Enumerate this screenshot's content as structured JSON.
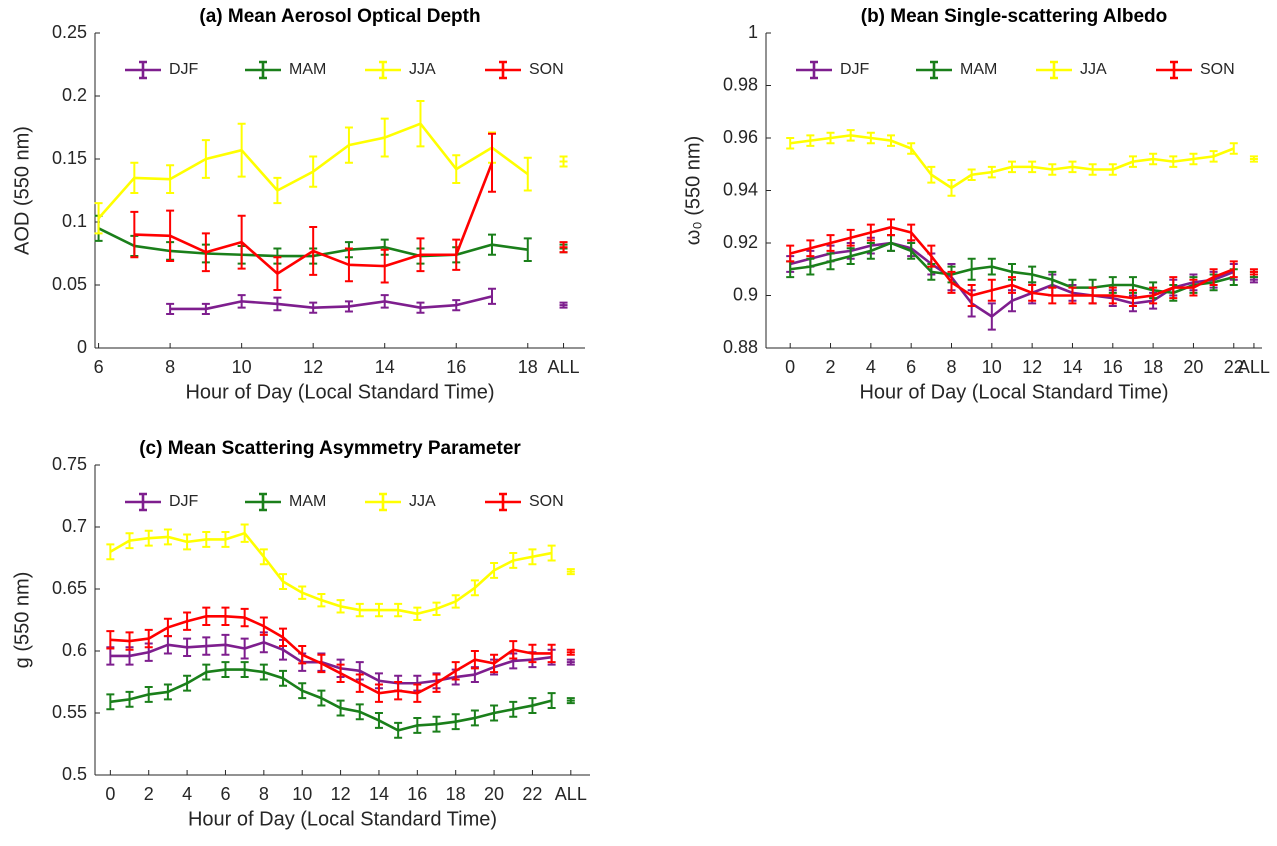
{
  "chart_data": [
    {
      "type": "line",
      "title": "(a) Mean Aerosol Optical Depth",
      "xlabel": "Hour of Day (Local Standard Time)",
      "ylabel": "AOD (550 nm)",
      "x": [
        6,
        7,
        8,
        9,
        10,
        11,
        12,
        13,
        14,
        15,
        16,
        17,
        18
      ],
      "xlim": [
        5.9,
        19.6
      ],
      "xticks": [
        6,
        8,
        10,
        12,
        14,
        16,
        18,
        {
          "value": 19,
          "label": "ALL"
        }
      ],
      "ylim": [
        0,
        0.25
      ],
      "yticks": [
        0,
        0.05,
        0.1,
        0.15,
        0.2,
        0.25
      ],
      "series": [
        {
          "name": "DJF",
          "color": "#7e1e8e",
          "values": [
            null,
            null,
            0.031,
            0.031,
            0.037,
            0.035,
            0.032,
            0.033,
            0.037,
            0.032,
            0.034,
            0.041,
            null
          ],
          "errors": [
            null,
            null,
            0.004,
            0.004,
            0.005,
            0.005,
            0.004,
            0.004,
            0.005,
            0.004,
            0.004,
            0.006,
            null
          ],
          "overall": 0.034,
          "overall_error": 0.002
        },
        {
          "name": "MAM",
          "color": "#1a7f1a",
          "values": [
            0.095,
            0.081,
            0.077,
            0.075,
            0.074,
            0.073,
            0.073,
            0.078,
            0.08,
            0.073,
            0.074,
            0.082,
            0.078
          ],
          "errors": [
            0.01,
            0.008,
            0.007,
            0.007,
            0.007,
            0.006,
            0.006,
            0.006,
            0.006,
            0.006,
            0.006,
            0.008,
            0.009
          ],
          "overall": 0.079,
          "overall_error": 0.003
        },
        {
          "name": "JJA",
          "color": "#ffff00",
          "values": [
            0.103,
            0.135,
            0.134,
            0.15,
            0.157,
            0.125,
            0.14,
            0.161,
            0.167,
            0.178,
            0.142,
            0.159,
            0.138
          ],
          "errors": [
            0.012,
            0.012,
            0.011,
            0.015,
            0.021,
            0.01,
            0.012,
            0.014,
            0.015,
            0.018,
            0.011,
            0.012,
            0.013
          ],
          "overall": 0.148,
          "overall_error": 0.004
        },
        {
          "name": "SON",
          "color": "#ff0000",
          "values": [
            null,
            0.09,
            0.089,
            0.076,
            0.084,
            0.059,
            0.077,
            0.066,
            0.065,
            0.074,
            0.074,
            0.147,
            null
          ],
          "errors": [
            null,
            0.018,
            0.02,
            0.015,
            0.021,
            0.013,
            0.019,
            0.013,
            0.013,
            0.013,
            0.012,
            0.023,
            null
          ],
          "overall": 0.08,
          "overall_error": 0.004
        }
      ]
    },
    {
      "type": "line",
      "title": "(b) Mean Single-scattering Albedo",
      "xlabel": "Hour of Day (Local Standard Time)",
      "ylabel": "ω₀ (550 nm)",
      "x": [
        0,
        1,
        2,
        3,
        4,
        5,
        6,
        7,
        8,
        9,
        10,
        11,
        12,
        13,
        14,
        15,
        16,
        17,
        18,
        19,
        20,
        21,
        22
      ],
      "xlim": [
        -1.2,
        23.4
      ],
      "xticks": [
        0,
        2,
        4,
        6,
        8,
        10,
        12,
        14,
        16,
        18,
        20,
        22,
        {
          "value": 23,
          "label": "ALL"
        }
      ],
      "ylim": [
        0.88,
        1
      ],
      "yticks": [
        0.88,
        0.9,
        0.92,
        0.94,
        0.96,
        0.98,
        1
      ],
      "series": [
        {
          "name": "DJF",
          "color": "#7e1e8e",
          "values": [
            0.912,
            0.914,
            0.916,
            0.917,
            0.919,
            0.92,
            0.918,
            0.912,
            0.907,
            0.897,
            0.892,
            0.898,
            0.901,
            0.904,
            0.901,
            0.9,
            0.899,
            0.897,
            0.898,
            0.903,
            0.905,
            0.906,
            0.909
          ],
          "errors": [
            0.003,
            0.003,
            0.003,
            0.003,
            0.003,
            0.003,
            0.003,
            0.004,
            0.005,
            0.005,
            0.005,
            0.004,
            0.004,
            0.004,
            0.003,
            0.003,
            0.003,
            0.003,
            0.003,
            0.003,
            0.003,
            0.003,
            0.003
          ],
          "overall": 0.906,
          "overall_error": 0.001
        },
        {
          "name": "MAM",
          "color": "#1a7f1a",
          "values": [
            0.91,
            0.911,
            0.913,
            0.915,
            0.917,
            0.92,
            0.917,
            0.909,
            0.908,
            0.91,
            0.911,
            0.909,
            0.908,
            0.906,
            0.903,
            0.903,
            0.904,
            0.904,
            0.902,
            0.901,
            0.904,
            0.905,
            0.907
          ],
          "errors": [
            0.003,
            0.003,
            0.003,
            0.003,
            0.003,
            0.003,
            0.003,
            0.003,
            0.003,
            0.004,
            0.003,
            0.003,
            0.003,
            0.003,
            0.003,
            0.003,
            0.003,
            0.003,
            0.003,
            0.003,
            0.003,
            0.003,
            0.003
          ],
          "overall": 0.908,
          "overall_error": 0.001
        },
        {
          "name": "JJA",
          "color": "#ffff00",
          "values": [
            0.958,
            0.959,
            0.96,
            0.961,
            0.96,
            0.959,
            0.956,
            0.946,
            0.941,
            0.946,
            0.947,
            0.949,
            0.949,
            0.948,
            0.949,
            0.948,
            0.948,
            0.951,
            0.952,
            0.951,
            0.952,
            0.953,
            0.956
          ],
          "errors": [
            0.002,
            0.002,
            0.002,
            0.002,
            0.002,
            0.002,
            0.002,
            0.003,
            0.003,
            0.002,
            0.002,
            0.002,
            0.002,
            0.002,
            0.002,
            0.002,
            0.002,
            0.002,
            0.002,
            0.002,
            0.002,
            0.002,
            0.002
          ],
          "overall": 0.952,
          "overall_error": 0.001
        },
        {
          "name": "SON",
          "color": "#ff0000",
          "values": [
            0.916,
            0.918,
            0.92,
            0.922,
            0.924,
            0.926,
            0.924,
            0.915,
            0.905,
            0.9,
            0.902,
            0.904,
            0.901,
            0.9,
            0.9,
            0.9,
            0.9,
            0.899,
            0.9,
            0.903,
            0.903,
            0.907,
            0.91
          ],
          "errors": [
            0.003,
            0.003,
            0.003,
            0.003,
            0.003,
            0.003,
            0.003,
            0.004,
            0.004,
            0.004,
            0.004,
            0.003,
            0.003,
            0.003,
            0.003,
            0.003,
            0.003,
            0.003,
            0.003,
            0.004,
            0.003,
            0.003,
            0.003
          ],
          "overall": 0.909,
          "overall_error": 0.001
        }
      ]
    },
    {
      "type": "line",
      "title": "(c) Mean Scattering Asymmetry Parameter",
      "xlabel": "Hour of Day (Local Standard Time)",
      "ylabel": "g (550 nm)",
      "x": [
        0,
        1,
        2,
        3,
        4,
        5,
        6,
        7,
        8,
        9,
        10,
        11,
        12,
        13,
        14,
        15,
        16,
        17,
        18,
        19,
        20,
        21,
        22,
        23
      ],
      "xlim": [
        -0.8,
        25
      ],
      "xticks": [
        0,
        2,
        4,
        6,
        8,
        10,
        12,
        14,
        16,
        18,
        20,
        22,
        {
          "value": 24,
          "label": "ALL"
        }
      ],
      "ylim": [
        0.5,
        0.75
      ],
      "yticks": [
        0.5,
        0.55,
        0.6,
        0.65,
        0.7,
        0.75
      ],
      "series": [
        {
          "name": "DJF",
          "color": "#7e1e8e",
          "values": [
            0.596,
            0.596,
            0.599,
            0.605,
            0.603,
            0.604,
            0.605,
            0.602,
            0.607,
            0.601,
            0.591,
            0.591,
            0.586,
            0.584,
            0.576,
            0.574,
            0.574,
            0.576,
            0.579,
            0.581,
            0.587,
            0.592,
            0.593,
            0.595
          ],
          "errors": [
            0.007,
            0.007,
            0.007,
            0.007,
            0.007,
            0.007,
            0.008,
            0.008,
            0.008,
            0.008,
            0.007,
            0.007,
            0.007,
            0.007,
            0.006,
            0.006,
            0.006,
            0.006,
            0.006,
            0.006,
            0.006,
            0.006,
            0.006,
            0.006
          ],
          "overall": 0.591,
          "overall_error": 0.002
        },
        {
          "name": "MAM",
          "color": "#1a7f1a",
          "values": [
            0.559,
            0.561,
            0.565,
            0.567,
            0.574,
            0.583,
            0.585,
            0.585,
            0.583,
            0.578,
            0.568,
            0.562,
            0.554,
            0.551,
            0.544,
            0.536,
            0.54,
            0.541,
            0.543,
            0.546,
            0.55,
            0.553,
            0.556,
            0.56
          ],
          "errors": [
            0.006,
            0.006,
            0.006,
            0.006,
            0.006,
            0.006,
            0.006,
            0.006,
            0.006,
            0.006,
            0.006,
            0.006,
            0.006,
            0.006,
            0.006,
            0.006,
            0.006,
            0.006,
            0.006,
            0.006,
            0.006,
            0.006,
            0.006,
            0.006
          ],
          "overall": 0.56,
          "overall_error": 0.002
        },
        {
          "name": "JJA",
          "color": "#ffff00",
          "values": [
            0.68,
            0.689,
            0.691,
            0.692,
            0.688,
            0.69,
            0.69,
            0.695,
            0.676,
            0.656,
            0.647,
            0.641,
            0.636,
            0.633,
            0.633,
            0.633,
            0.63,
            0.634,
            0.64,
            0.651,
            0.665,
            0.673,
            0.676,
            0.679
          ],
          "errors": [
            0.006,
            0.006,
            0.006,
            0.006,
            0.006,
            0.006,
            0.006,
            0.007,
            0.006,
            0.006,
            0.005,
            0.005,
            0.005,
            0.005,
            0.005,
            0.005,
            0.005,
            0.005,
            0.005,
            0.006,
            0.006,
            0.006,
            0.006,
            0.006
          ],
          "overall": 0.664,
          "overall_error": 0.002
        },
        {
          "name": "SON",
          "color": "#ff0000",
          "values": [
            0.609,
            0.608,
            0.61,
            0.619,
            0.624,
            0.628,
            0.628,
            0.627,
            0.62,
            0.611,
            0.597,
            0.59,
            0.582,
            0.574,
            0.566,
            0.568,
            0.566,
            0.574,
            0.584,
            0.593,
            0.59,
            0.601,
            0.598,
            0.598
          ],
          "errors": [
            0.007,
            0.007,
            0.007,
            0.007,
            0.007,
            0.007,
            0.007,
            0.007,
            0.007,
            0.007,
            0.007,
            0.007,
            0.007,
            0.007,
            0.007,
            0.007,
            0.007,
            0.007,
            0.007,
            0.007,
            0.007,
            0.007,
            0.007,
            0.007
          ],
          "overall": 0.599,
          "overall_error": 0.002
        }
      ]
    }
  ]
}
